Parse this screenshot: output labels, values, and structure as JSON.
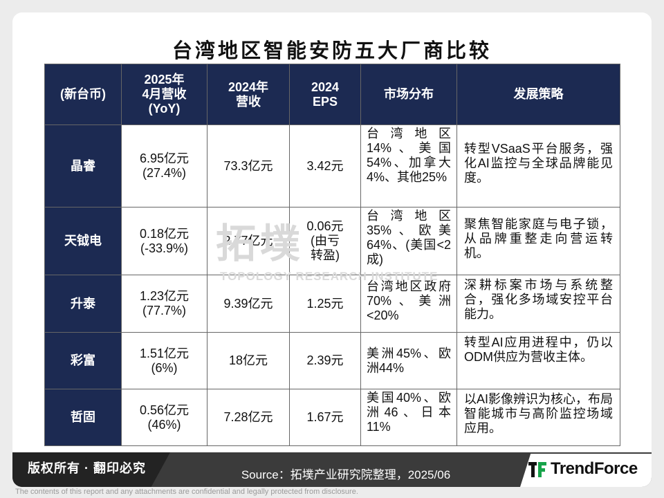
{
  "title": "台湾地区智能安防五大厂商比较",
  "table": {
    "headers": [
      "(新台币)",
      "2025年\n4月营收\n(YoY)",
      "2024年\n营收",
      "2024\nEPS",
      "市场分布",
      "发展策略"
    ],
    "rows": [
      {
        "name": "晶睿",
        "apr_rev": "6.95亿元\n(27.4%)",
        "rev_2024": "73.3亿元",
        "eps": "3.42元",
        "market": "台湾地区14%、美国54%、加拿大4%、其他25%",
        "strategy": "转型VSaaS平台服务，强化AI监控与全球品牌能见度。"
      },
      {
        "name": "天钺电",
        "apr_rev": "0.18亿元\n(-33.9%)",
        "rev_2024": "2.77亿元",
        "eps": "0.06元\n(由亏\n转盈)",
        "market": "台湾地区35%、欧美64%、(美国<2成)",
        "strategy": "聚焦智能家庭与电子锁，从品牌重整走向营运转机。"
      },
      {
        "name": "升泰",
        "apr_rev": "1.23亿元\n(77.7%)",
        "rev_2024": "9.39亿元",
        "eps": "1.25元",
        "market": "台湾地区政府70%、美洲<20%",
        "strategy": "深耕标案市场与系统整合，强化多场域安控平台能力。"
      },
      {
        "name": "彩富",
        "apr_rev": "1.51亿元\n(6%)",
        "rev_2024": "18亿元",
        "eps": "2.39元",
        "market": "美洲45%、欧洲44%",
        "strategy": "转型AI应用进程中，仍以ODM供应为营收主体。"
      },
      {
        "name": "哲固",
        "apr_rev": "0.56亿元\n(46%)",
        "rev_2024": "7.28亿元",
        "eps": "1.67元",
        "market": "美国40%、欧洲46、日本11%",
        "strategy": "以AI影像辨识为核心，布局智能城市与高阶监控场域应用。"
      }
    ]
  },
  "watermark": {
    "cn": "拓墣",
    "en": "TOPOLOGY RESEARCH INSTITUTE"
  },
  "footer": {
    "copyright": "版权所有 · 翻印必究",
    "source": "Source：拓墣产业研究院整理，2025/06",
    "logo": "TrendForce",
    "disclaimer": "The contents of this report and any attachments are confidential and legally protected from disclosure."
  },
  "colors": {
    "header_bg": "#1c2a52",
    "footer_bg": "#3b3b3b",
    "logo_accent": "#17a34a"
  }
}
